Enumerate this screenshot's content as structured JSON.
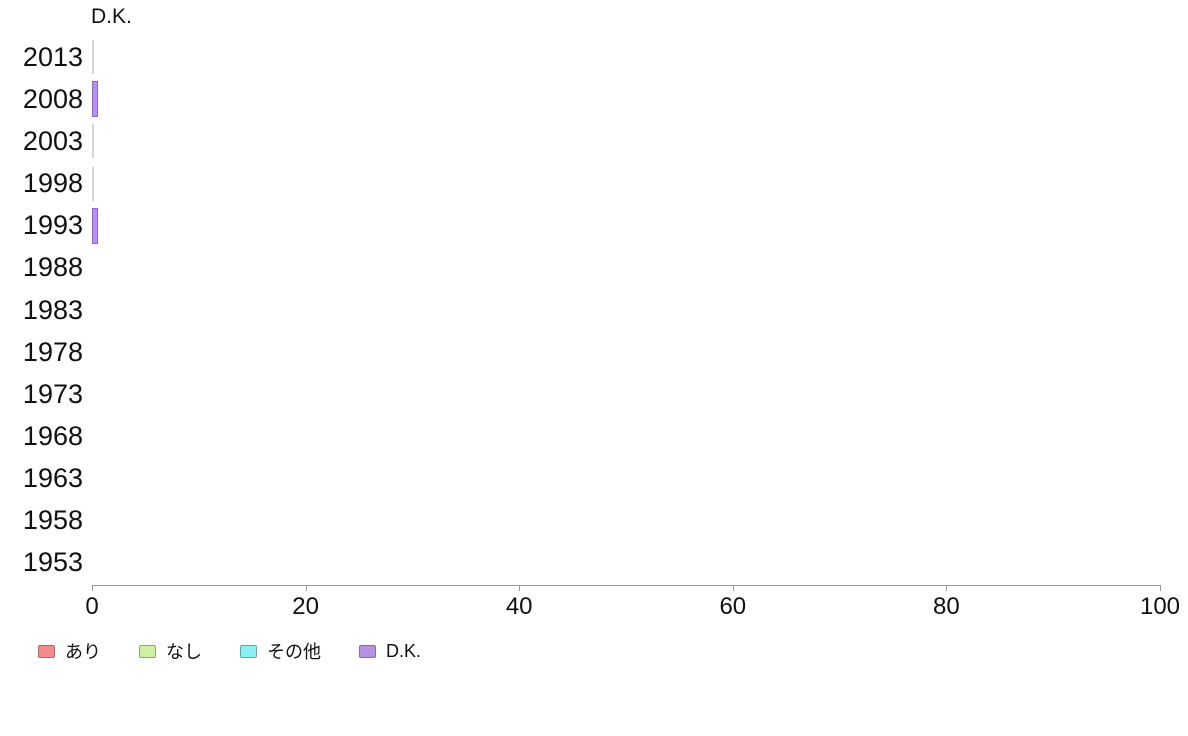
{
  "chart": {
    "title": "D.K.",
    "legend": [
      {
        "label": "あり",
        "color": "#f28c8c"
      },
      {
        "label": "なし",
        "color": "#cdf19e"
      },
      {
        "label": "その他",
        "color": "#8af0f0"
      },
      {
        "label": "D.K.",
        "color": "#b791e6"
      }
    ]
  },
  "chart_data": {
    "type": "bar",
    "orientation": "horizontal",
    "title": "D.K.",
    "categories": [
      "2013",
      "2008",
      "2003",
      "1998",
      "1993",
      "1988",
      "1983",
      "1978",
      "1973",
      "1968",
      "1963",
      "1958",
      "1953"
    ],
    "series": [
      {
        "name": "D.K.",
        "color": "#b791e6",
        "border_color": "#8f63d6",
        "values": [
          0,
          0.4,
          0,
          0,
          0.4,
          null,
          null,
          null,
          null,
          null,
          null,
          null,
          null
        ]
      }
    ],
    "xlim": [
      0,
      100
    ],
    "xticks": [
      0,
      20,
      40,
      60,
      80,
      100
    ],
    "ylabel": "",
    "xlabel": "",
    "grid": false,
    "legend_entries": [
      "あり",
      "なし",
      "その他",
      "D.K."
    ],
    "legend_position": "bottom-left",
    "zero_marker_color": "#d4d4d4",
    "axis_color": "#999999"
  }
}
